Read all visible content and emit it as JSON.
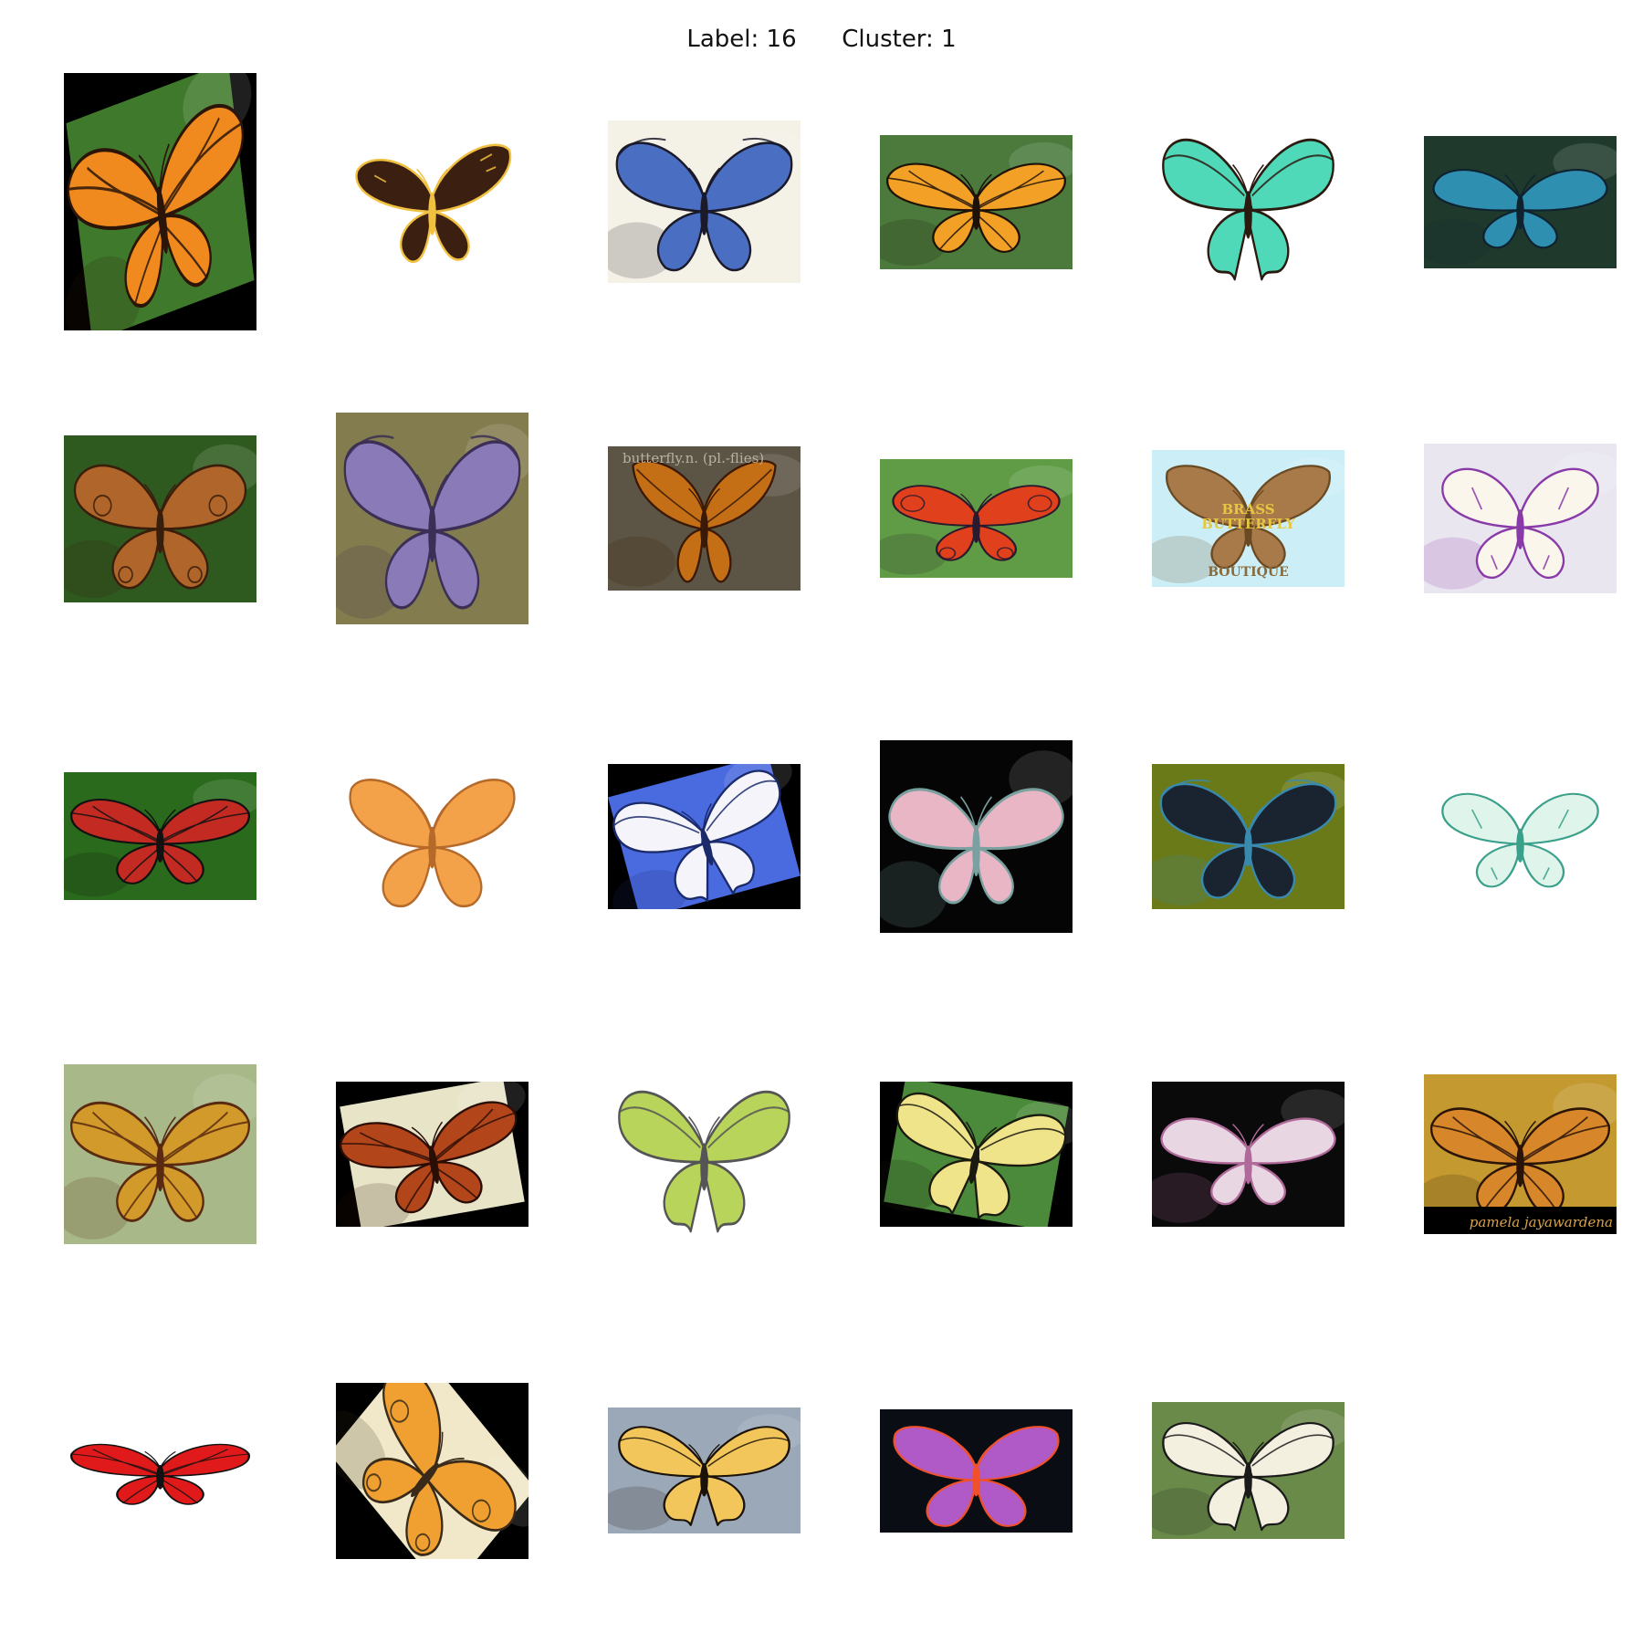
{
  "figure": {
    "title_label": "Label: 16",
    "title_cluster": "Cluster: 1"
  },
  "thumbnails": [
    {
      "name": "monarch-on-cornflowers",
      "bg": "#000000",
      "scene": "#3f7a2c",
      "wing": "#f08a1e",
      "vein": "#2a1508",
      "shape": "monarch",
      "tilt": -12
    },
    {
      "name": "dark-brown-skipper",
      "bg": "#ffffff",
      "scene": "#ffffff",
      "wing": "#3b1f10",
      "vein": "#f0c040",
      "shape": "skipper",
      "tilt": 0
    },
    {
      "name": "blue-morpho",
      "bg": "#ffffff",
      "scene": "#f4f1e6",
      "wing": "#4a6fc2",
      "vein": "#1a1a2a",
      "shape": "morpho",
      "tilt": 0
    },
    {
      "name": "monarch-on-leaves",
      "bg": "#ffffff",
      "scene": "#4b7a3c",
      "wing": "#f2a126",
      "vein": "#1e1208",
      "shape": "monarch",
      "tilt": 0
    },
    {
      "name": "green-swallowtail",
      "bg": "#ffffff",
      "scene": "#ffffff",
      "wing": "#4fd9b8",
      "vein": "#2b1a10",
      "shape": "swallowtail",
      "tilt": 0
    },
    {
      "name": "blue-moth-oval",
      "bg": "#6fa8a8",
      "scene": "#1f3a2c",
      "wing": "#2f8fb0",
      "vein": "#0e2230",
      "shape": "moth",
      "tilt": 0
    },
    {
      "name": "buckeye",
      "bg": "#1c3d12",
      "scene": "#2f5a1f",
      "wing": "#b0652a",
      "vein": "#3a1e0c",
      "shape": "buckeye",
      "tilt": 0
    },
    {
      "name": "purple-hairstreak-on-flower",
      "bg": "#6a6a3c",
      "scene": "#837c4e",
      "wing": "#8a7ab8",
      "vein": "#3c2f55",
      "shape": "morpho",
      "tilt": 0
    },
    {
      "name": "butterfly-definition-page",
      "bg": "#4a4436",
      "scene": "#5c5444",
      "wing": "#c46f16",
      "vein": "#3a1a06",
      "shape": "leafwing",
      "tilt": 0
    },
    {
      "name": "peacock-butterfly",
      "bg": "#3f7a2c",
      "scene": "#5f9c45",
      "wing": "#e0401c",
      "vein": "#2a1a2e",
      "shape": "peacock",
      "tilt": 0
    },
    {
      "name": "brass-butterfly-boutique",
      "bg": "#a8e4f2",
      "scene": "#cceef6",
      "wing": "#a87a4a",
      "vein": "#6a4a22",
      "shape": "logo",
      "tilt": 0
    },
    {
      "name": "white-candy-butterfly",
      "bg": "#e3e0ec",
      "scene": "#e9e6f0",
      "wing": "#faf6ec",
      "vein": "#8a3aa8",
      "shape": "candy",
      "tilt": 0
    },
    {
      "name": "red-viceroy-on-leaf",
      "bg": "#0c2a0a",
      "scene": "#2a6a1c",
      "wing": "#c22a22",
      "vein": "#111111",
      "shape": "monarch",
      "tilt": 0
    },
    {
      "name": "orange-clipart-butterfly",
      "bg": "#ffffff",
      "scene": "#ffffff",
      "wing": "#f4a24a",
      "vein": "#b56a2a",
      "shape": "clipart",
      "tilt": 0
    },
    {
      "name": "blue-white-swallowtail",
      "bg": "#000000",
      "scene": "#4a6ae0",
      "wing": "#f4f4fa",
      "vein": "#1a2a6a",
      "shape": "swallowtail",
      "tilt": -15
    },
    {
      "name": "pastel-moth-on-black",
      "bg": "#000000",
      "scene": "#050505",
      "wing": "#e8b6c4",
      "vein": "#7aa0a0",
      "shape": "moth",
      "tilt": 0
    },
    {
      "name": "black-swallowtail-on-sunflowers",
      "bg": "#e2cc10",
      "scene": "#6a7a18",
      "wing": "#1a2430",
      "vein": "#3a8ab0",
      "shape": "morpho",
      "tilt": 0
    },
    {
      "name": "mint-lace-butterfly",
      "bg": "#ffffff",
      "scene": "#ffffff",
      "wing": "#dff4ea",
      "vein": "#3aa08a",
      "shape": "candy",
      "tilt": 0
    },
    {
      "name": "fritillary-on-leaves",
      "bg": "#3f6a2a",
      "scene": "#a8b888",
      "wing": "#d29a2a",
      "vein": "#5a2a10",
      "shape": "monarch",
      "tilt": 0
    },
    {
      "name": "gulf-fritillary-on-daisies",
      "bg": "#000000",
      "scene": "#e8e4c8",
      "wing": "#b2461a",
      "vein": "#2a0e06",
      "shape": "monarch",
      "tilt": -10
    },
    {
      "name": "malachite-butterfly-drawing",
      "bg": "#ffffff",
      "scene": "#ffffff",
      "wing": "#b8d45a",
      "vein": "#555555",
      "shape": "swallowtail",
      "tilt": 0
    },
    {
      "name": "swallowtail-on-thistle",
      "bg": "#000000",
      "scene": "#4a8a3a",
      "wing": "#f0e48a",
      "vein": "#1a1a10",
      "shape": "swallowtail",
      "tilt": 10
    },
    {
      "name": "pink-embroidered-butterfly",
      "bg": "#000000",
      "scene": "#0a0a0a",
      "wing": "#e8d6e2",
      "vein": "#b06a9a",
      "shape": "moth",
      "tilt": 0
    },
    {
      "name": "monarch-on-sunflower-watermark",
      "bg": "#2a1a06",
      "scene": "#c49a30",
      "wing": "#d8862a",
      "vein": "#2a1408",
      "shape": "monarch",
      "tilt": 0
    },
    {
      "name": "red-viceroy-isolated",
      "bg": "#ffffff",
      "scene": "#ffffff",
      "wing": "#e01a1a",
      "vein": "#111111",
      "shape": "monarch",
      "tilt": 0
    },
    {
      "name": "orange-peacock-painting",
      "bg": "#000000",
      "scene": "#f0e8c8",
      "wing": "#f0a030",
      "vein": "#3a2a1a",
      "shape": "buckeye",
      "tilt": 45
    },
    {
      "name": "tiger-swallowtail-on-lilac",
      "bg": "#a8b8c8",
      "scene": "#9aa8b8",
      "wing": "#f2c65a",
      "vein": "#1a1208",
      "shape": "swallowtail",
      "tilt": 0
    },
    {
      "name": "rainbow-clipart-butterfly",
      "bg": "#0a0e14",
      "scene": "#0a0e14",
      "wing": "#b05ac8",
      "vein": "#f0502a",
      "shape": "clipart",
      "tilt": 0
    },
    {
      "name": "old-world-swallowtail-on-flowers",
      "bg": "#5a7a3a",
      "scene": "#6a8a4a",
      "wing": "#f4f0e0",
      "vein": "#1a1a1a",
      "shape": "swallowtail",
      "tilt": 0
    }
  ],
  "overlay_text": {
    "definition_title": "butterfly.n. (pl.-flies)",
    "logo_line1": "BRASS",
    "logo_line2": "BUTTERFLY",
    "logo_line3": "BOUTIQUE",
    "watermark": "pamela jayawardena"
  }
}
